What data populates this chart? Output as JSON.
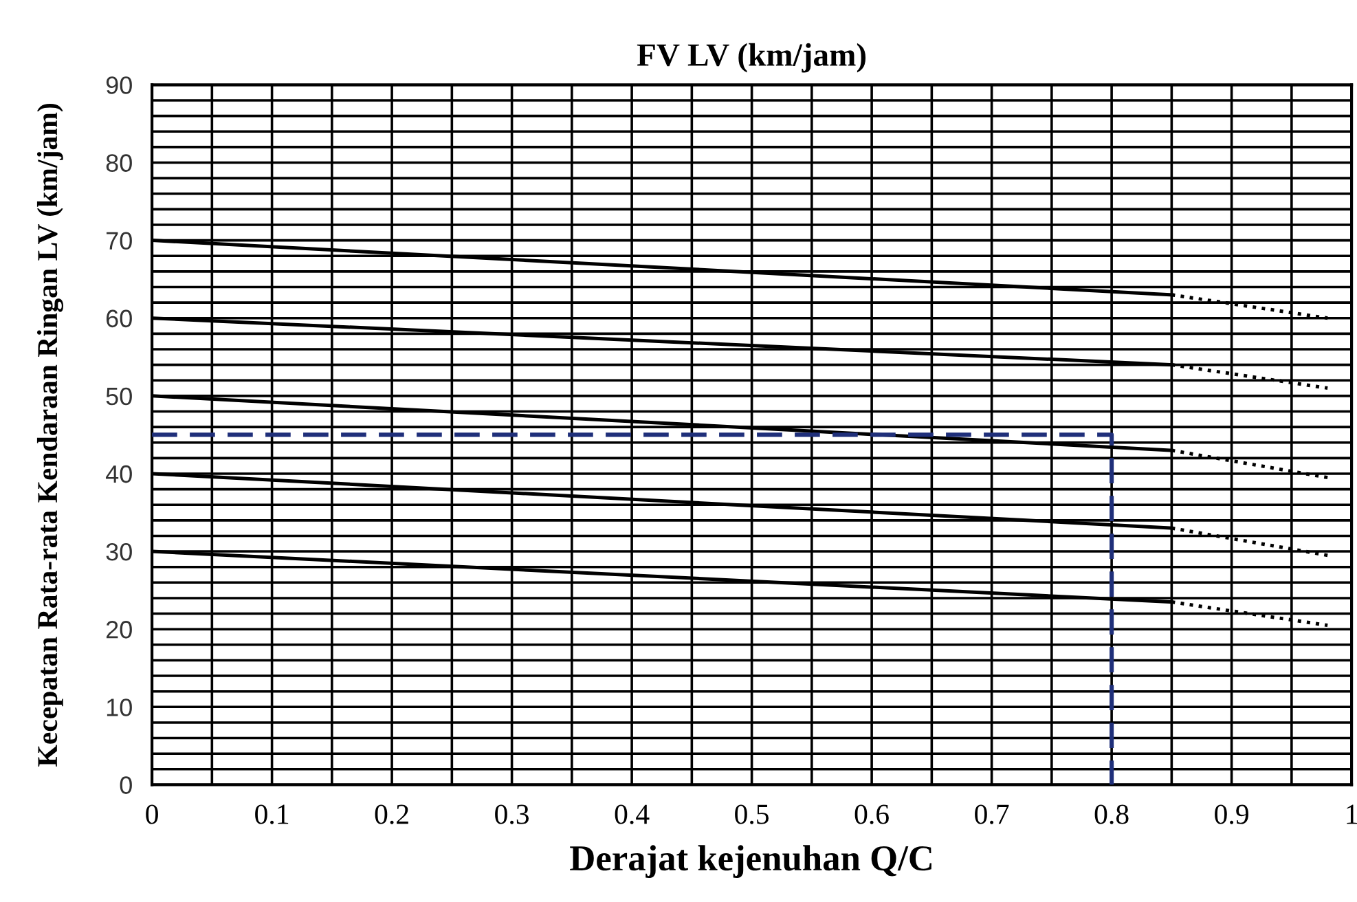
{
  "chart_data": {
    "type": "line",
    "title": "FV LV (km/jam)",
    "xlabel": "Derajat kejenuhan Q/C",
    "ylabel": "Kecepatan Rata-rata Kendaraan Ringan LV (km/jam)",
    "xlim": [
      0,
      1
    ],
    "ylim": [
      0,
      90
    ],
    "xticks": [
      0,
      {
        "value": 0.05,
        "label": null
      },
      0.1,
      {
        "value": 0.15,
        "label": null
      },
      0.2,
      {
        "value": 0.25,
        "label": null
      },
      0.3,
      {
        "value": 0.35,
        "label": null
      },
      0.4,
      {
        "value": 0.45,
        "label": null
      },
      0.5,
      {
        "value": 0.55,
        "label": null
      },
      0.6,
      {
        "value": 0.65,
        "label": null
      },
      0.7,
      {
        "value": 0.75,
        "label": null
      },
      0.8,
      {
        "value": 0.85,
        "label": null
      },
      0.9,
      {
        "value": 0.95,
        "label": null
      },
      1
    ],
    "yticks": [
      0,
      {
        "value": 2,
        "label": null
      },
      {
        "value": 4,
        "label": null
      },
      {
        "value": 6,
        "label": null
      },
      {
        "value": 8,
        "label": null
      },
      10,
      {
        "value": 12,
        "label": null
      },
      {
        "value": 14,
        "label": null
      },
      {
        "value": 16,
        "label": null
      },
      {
        "value": 18,
        "label": null
      },
      20,
      {
        "value": 22,
        "label": null
      },
      {
        "value": 24,
        "label": null
      },
      {
        "value": 26,
        "label": null
      },
      {
        "value": 28,
        "label": null
      },
      30,
      {
        "value": 32,
        "label": null
      },
      {
        "value": 34,
        "label": null
      },
      {
        "value": 36,
        "label": null
      },
      {
        "value": 38,
        "label": null
      },
      40,
      {
        "value": 42,
        "label": null
      },
      {
        "value": 44,
        "label": null
      },
      {
        "value": 46,
        "label": null
      },
      {
        "value": 48,
        "label": null
      },
      50,
      {
        "value": 52,
        "label": null
      },
      {
        "value": 54,
        "label": null
      },
      {
        "value": 56,
        "label": null
      },
      {
        "value": 58,
        "label": null
      },
      60,
      {
        "value": 62,
        "label": null
      },
      {
        "value": 64,
        "label": null
      },
      {
        "value": 66,
        "label": null
      },
      {
        "value": 68,
        "label": null
      },
      70,
      {
        "value": 72,
        "label": null
      },
      {
        "value": 74,
        "label": null
      },
      {
        "value": 76,
        "label": null
      },
      {
        "value": 78,
        "label": null
      },
      80,
      {
        "value": 82,
        "label": null
      },
      {
        "value": 84,
        "label": null
      },
      {
        "value": 86,
        "label": null
      },
      {
        "value": 88,
        "label": null
      },
      90
    ],
    "grid": true,
    "legend": false,
    "marker": "none",
    "series": [
      {
        "color": "#000000",
        "line_style": "solid",
        "x": [
          0,
          0.85
        ],
        "values": [
          70,
          63
        ]
      },
      {
        "color": "#000000",
        "line_style": "dotted",
        "x": [
          0.85,
          0.98
        ],
        "values": [
          63,
          60
        ]
      },
      {
        "color": "#000000",
        "line_style": "solid",
        "x": [
          0,
          0.85
        ],
        "values": [
          60,
          54
        ]
      },
      {
        "color": "#000000",
        "line_style": "dotted",
        "x": [
          0.85,
          0.98
        ],
        "values": [
          54,
          51
        ]
      },
      {
        "color": "#000000",
        "line_style": "solid",
        "x": [
          0,
          0.85
        ],
        "values": [
          50,
          43
        ]
      },
      {
        "color": "#000000",
        "line_style": "dotted",
        "x": [
          0.85,
          0.98
        ],
        "values": [
          43,
          39.5
        ]
      },
      {
        "color": "#000000",
        "line_style": "solid",
        "x": [
          0,
          0.85
        ],
        "values": [
          40,
          33
        ]
      },
      {
        "color": "#000000",
        "line_style": "dotted",
        "x": [
          0.85,
          0.98
        ],
        "values": [
          33,
          29.5
        ]
      },
      {
        "color": "#000000",
        "line_style": "solid",
        "x": [
          0,
          0.85
        ],
        "values": [
          30,
          23.5
        ]
      },
      {
        "color": "#000000",
        "line_style": "dotted",
        "x": [
          0.85,
          0.98
        ],
        "values": [
          23.5,
          20.5
        ]
      },
      {
        "color": "#1f2f7a",
        "line_style": "dashed",
        "x": [
          0,
          0.8,
          0.8
        ],
        "values": [
          45,
          45,
          0
        ]
      }
    ]
  }
}
